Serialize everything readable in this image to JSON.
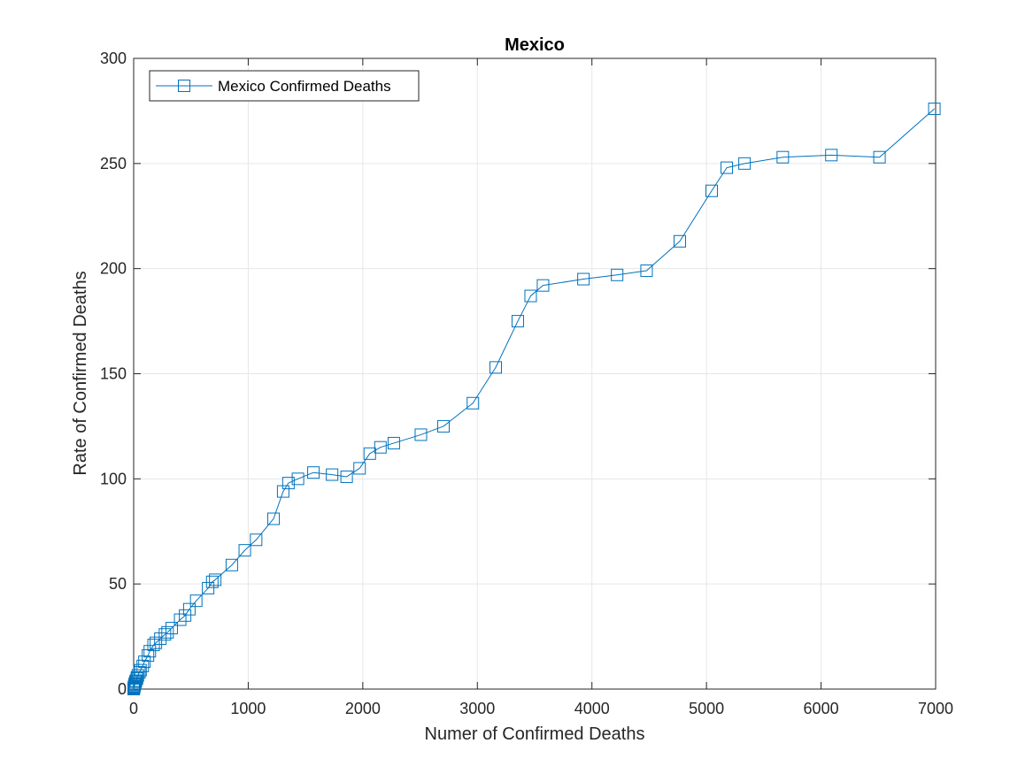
{
  "chart_data": {
    "type": "line",
    "title": "Mexico",
    "xlabel": "Numer of Confirmed Deaths",
    "ylabel": "Rate of Confirmed Deaths",
    "xlim": [
      0,
      7000
    ],
    "ylim": [
      0,
      300
    ],
    "xticks": [
      0,
      1000,
      2000,
      3000,
      4000,
      5000,
      6000,
      7000
    ],
    "yticks": [
      0,
      50,
      100,
      150,
      200,
      250,
      300
    ],
    "grid": true,
    "legend": "top-left",
    "series": [
      {
        "name": "Mexico Confirmed Deaths",
        "color": "#0072BD",
        "marker": "square",
        "x": [
          0,
          1,
          2,
          3,
          4,
          5,
          6,
          8,
          10,
          12,
          16,
          20,
          28,
          29,
          37,
          50,
          60,
          79,
          94,
          125,
          141,
          174,
          194,
          233,
          273,
          296,
          332,
          406,
          449,
          486,
          546,
          650,
          686,
          712,
          857,
          970,
          1069,
          1221,
          1305,
          1351,
          1434,
          1569,
          1732,
          1859,
          1972,
          2061,
          2154,
          2271,
          2507,
          2704,
          2961,
          3160,
          3353,
          3465,
          3573,
          3926,
          4220,
          4477,
          4767,
          5045,
          5177,
          5332,
          5666,
          6090,
          6510,
          6989
        ],
        "y": [
          0,
          0.3,
          0.5,
          0.8,
          1,
          1.3,
          1.5,
          2,
          2.4,
          2.8,
          3.5,
          4,
          5,
          5.5,
          6.5,
          8,
          9,
          11,
          13,
          16,
          18,
          21,
          22,
          24,
          26,
          27,
          29,
          33,
          35,
          38,
          42,
          48,
          51,
          52,
          59,
          66,
          71,
          81,
          94,
          98,
          100,
          103,
          102,
          101,
          105,
          112,
          115,
          117,
          121,
          125,
          136,
          153,
          175,
          187,
          192,
          195,
          197,
          199,
          213,
          237,
          248,
          250,
          253,
          254,
          253,
          276
        ]
      }
    ]
  }
}
